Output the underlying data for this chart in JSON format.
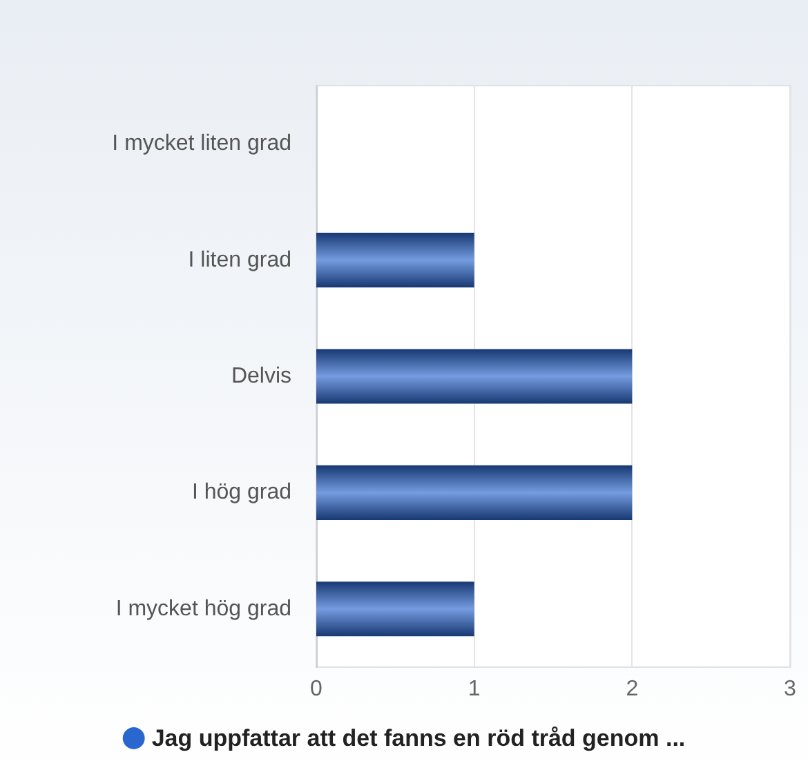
{
  "chart_data": {
    "type": "bar",
    "orientation": "horizontal",
    "categories": [
      "I mycket liten grad",
      "I liten grad",
      "Delvis",
      "I hög grad",
      "I mycket hög grad"
    ],
    "series": [
      {
        "name": "Jag uppfattar att det fanns en röd tråd genom ...",
        "color": "#2a66d0",
        "values": [
          0,
          1,
          2,
          2,
          1
        ]
      }
    ],
    "xlim": [
      0,
      3
    ],
    "xticks": [
      0,
      1,
      2,
      3
    ],
    "grid": "x",
    "legend": "bottom"
  }
}
